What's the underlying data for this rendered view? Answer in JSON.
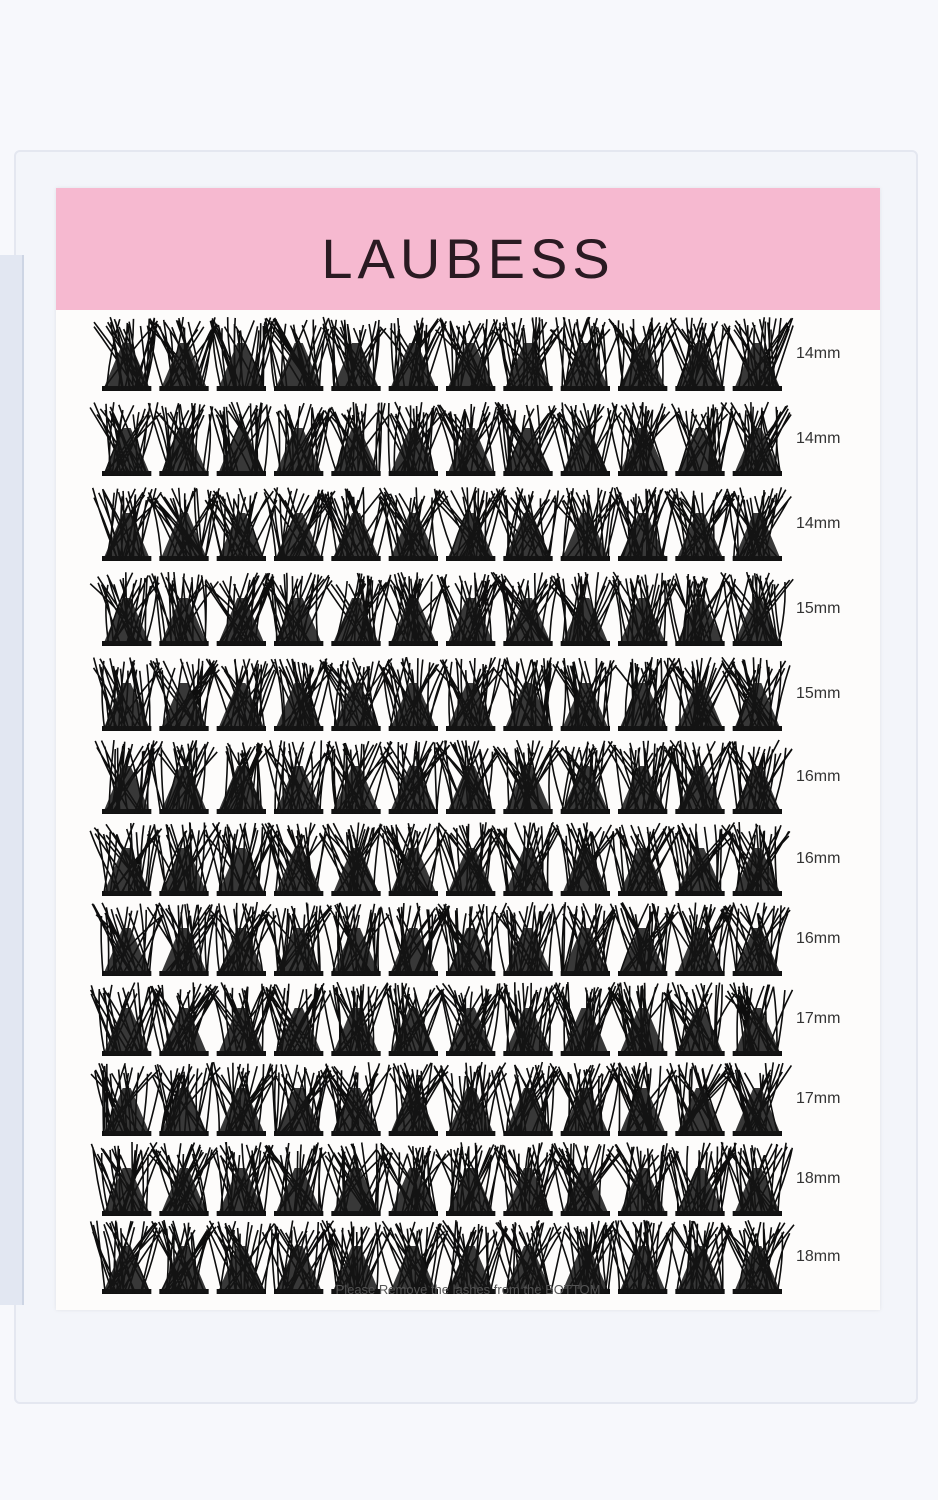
{
  "card": {
    "brand": "LAUBESS",
    "header_color": "#f6b9d0",
    "rows": [
      {
        "length": "14mm",
        "clusters": 12
      },
      {
        "length": "14mm",
        "clusters": 12
      },
      {
        "length": "14mm",
        "clusters": 12
      },
      {
        "length": "15mm",
        "clusters": 12
      },
      {
        "length": "15mm",
        "clusters": 12
      },
      {
        "length": "16mm",
        "clusters": 12
      },
      {
        "length": "16mm",
        "clusters": 12
      },
      {
        "length": "16mm",
        "clusters": 12
      },
      {
        "length": "17mm",
        "clusters": 12
      },
      {
        "length": "17mm",
        "clusters": 12
      },
      {
        "length": "18mm",
        "clusters": 12
      },
      {
        "length": "18mm",
        "clusters": 12
      }
    ],
    "footer_note": "Please Remove the lashes from the BOTTOM"
  }
}
